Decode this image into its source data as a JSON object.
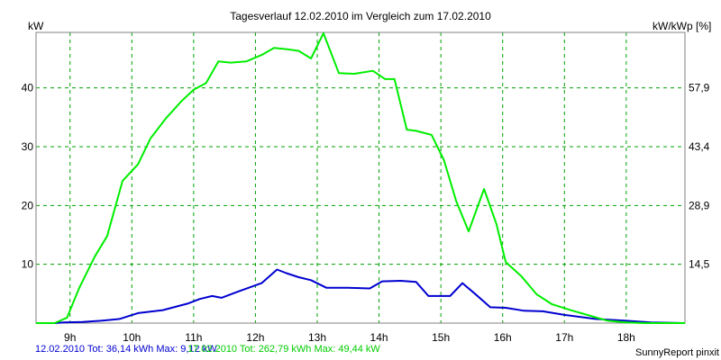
{
  "footer": {
    "series1": "12.02.2010 Tot: 36,14 kWh Max: 9,12 kW",
    "series2": "17.02.2010 Tot: 262,79 kWh Max: 49,44 kW",
    "brand": "SunnyReport pinxit"
  },
  "colors": {
    "plot_background": "#ffffff",
    "grid": "#00a000",
    "frame": "#808080",
    "series_12_02": "#0000d0",
    "series_17_02": "#00ee00"
  },
  "chart_data": {
    "type": "line",
    "title": "Tagesverlauf 12.02.2010 im Vergleich zum 17.02.2010",
    "ylabel": "kW",
    "ylabel_right": "kW/kWp [%]",
    "xlim": [
      8.45,
      18.95
    ],
    "ylim": [
      0,
      49.44
    ],
    "xticks": [
      9,
      10,
      11,
      12,
      13,
      14,
      15,
      16,
      17,
      18
    ],
    "xtick_labels": [
      "9h",
      "10h",
      "11h",
      "12h",
      "13h",
      "14h",
      "15h",
      "16h",
      "17h",
      "18h"
    ],
    "yticks": [
      10,
      20,
      30,
      40
    ],
    "yticks_right": [
      10,
      20,
      30,
      40
    ],
    "ytick_labels_right": [
      "14,5",
      "28,9",
      "43,4",
      "57,9"
    ],
    "grid": true,
    "series": [
      {
        "name": "12.02.2010",
        "color": "#0000d0",
        "x": [
          8.45,
          8.75,
          8.9,
          9.2,
          9.5,
          9.8,
          10.1,
          10.5,
          10.9,
          11.1,
          11.3,
          11.45,
          11.7,
          12.1,
          12.35,
          12.5,
          12.7,
          12.9,
          13.15,
          13.5,
          13.85,
          14.05,
          14.35,
          14.6,
          14.8,
          15.15,
          15.35,
          15.55,
          15.8,
          16.05,
          16.35,
          16.65,
          17,
          17.5,
          18,
          18.4,
          18.95
        ],
        "y": [
          0,
          0,
          0.1,
          0.2,
          0.4,
          0.7,
          1.7,
          2.2,
          3.3,
          4.1,
          4.6,
          4.3,
          5.3,
          6.8,
          9.1,
          8.5,
          7.8,
          7.3,
          6.0,
          6.0,
          5.9,
          7.1,
          7.2,
          7.0,
          4.6,
          4.6,
          6.8,
          5.0,
          2.7,
          2.6,
          2.1,
          2.0,
          1.4,
          0.7,
          0.4,
          0.1,
          0
        ]
      },
      {
        "name": "17.02.2010",
        "color": "#00ee00",
        "x": [
          8.45,
          8.75,
          8.95,
          9.15,
          9.4,
          9.6,
          9.85,
          10.1,
          10.3,
          10.55,
          10.8,
          11.0,
          11.2,
          11.4,
          11.6,
          11.85,
          12.1,
          12.3,
          12.5,
          12.7,
          12.9,
          13.1,
          13.35,
          13.6,
          13.9,
          14.1,
          14.25,
          14.45,
          14.6,
          14.85,
          15.05,
          15.25,
          15.45,
          15.7,
          15.9,
          16.05,
          16.3,
          16.55,
          16.8,
          17.1,
          17.4,
          17.7,
          18.0,
          18.3,
          18.55,
          18.95
        ],
        "y": [
          0,
          0,
          0.9,
          6.0,
          11.3,
          14.8,
          24.2,
          27.0,
          31.4,
          34.8,
          37.7,
          39.7,
          40.8,
          44.5,
          44.3,
          44.5,
          45.6,
          46.8,
          46.6,
          46.3,
          45.0,
          49.3,
          42.5,
          42.4,
          42.9,
          41.5,
          41.5,
          32.9,
          32.7,
          32.0,
          27.7,
          20.7,
          15.6,
          22.8,
          16.8,
          10.4,
          8.0,
          4.9,
          3.2,
          2.2,
          1.3,
          0.4,
          0.1,
          0,
          0,
          0
        ]
      }
    ]
  }
}
